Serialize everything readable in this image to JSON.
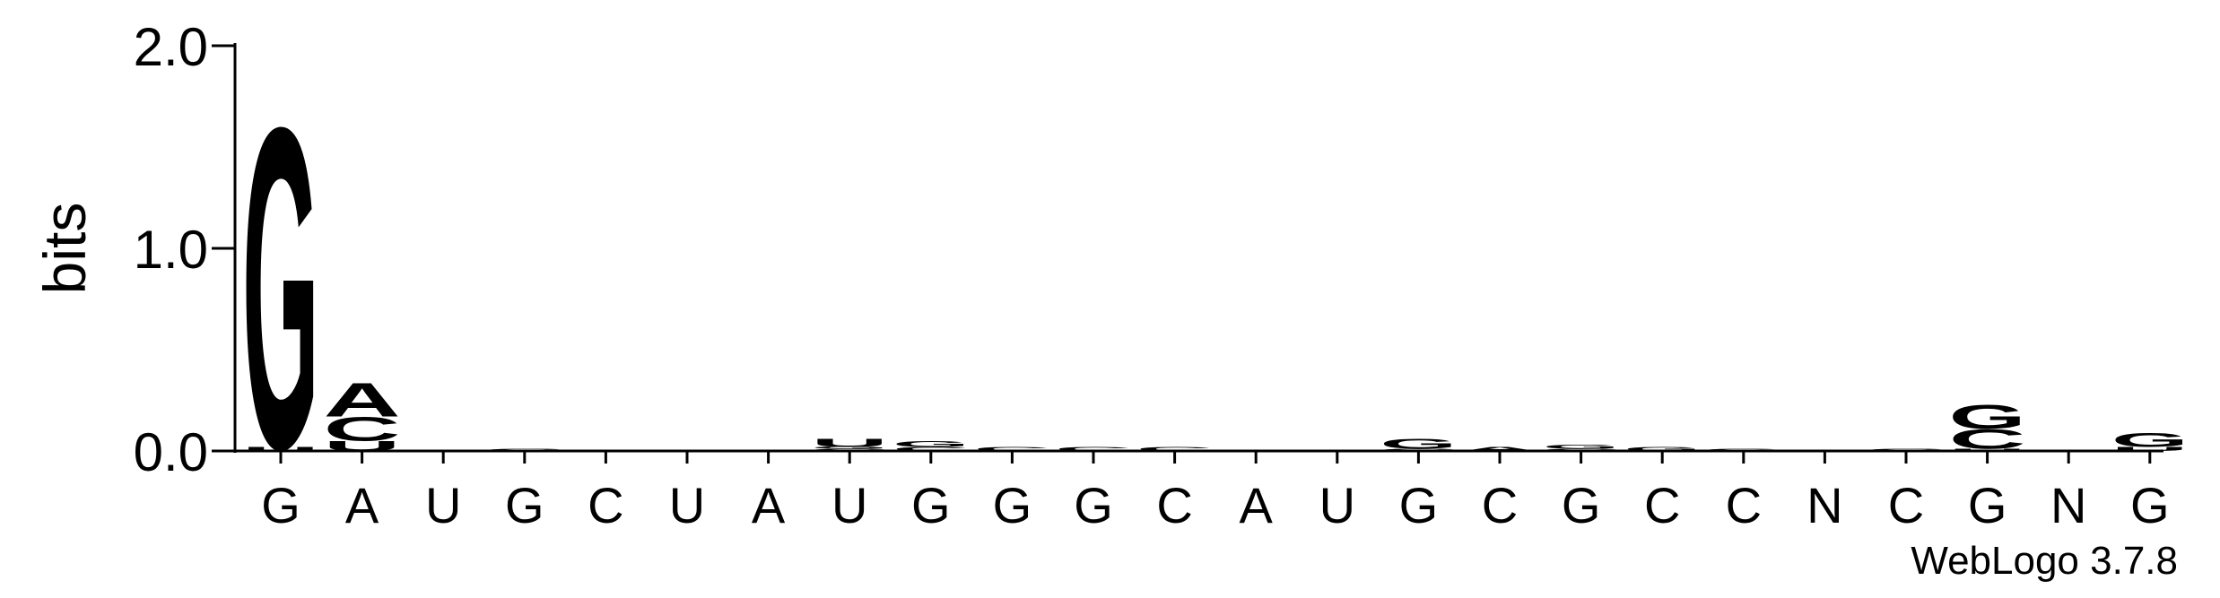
{
  "chart_data": {
    "type": "logo",
    "ylabel": "bits",
    "credit": "WebLogo 3.7.8",
    "categories": [
      "G",
      "A",
      "U",
      "G",
      "C",
      "U",
      "A",
      "U",
      "G",
      "G",
      "G",
      "C",
      "A",
      "U",
      "G",
      "C",
      "G",
      "C",
      "C",
      "N",
      "C",
      "G",
      "N",
      "G"
    ],
    "series": [
      {
        "name": "A",
        "color": "#ff8c00",
        "values": [
          0,
          0.17,
          0,
          0,
          0,
          0,
          0,
          0,
          0,
          0,
          0,
          0,
          0,
          0,
          0,
          0.02,
          0,
          0,
          0,
          0,
          0,
          0,
          0,
          0
        ]
      },
      {
        "name": "C",
        "color": "#0000ff",
        "values": [
          0,
          0.12,
          0,
          0.01,
          0,
          0,
          0,
          0.01,
          0.02,
          0.02,
          0.02,
          0.02,
          0,
          0,
          0.01,
          0,
          0.01,
          0,
          0,
          0,
          0.01,
          0.1,
          0,
          0
        ]
      },
      {
        "name": "G",
        "color": "#0000ff",
        "values": [
          1.62,
          0,
          0,
          0,
          0,
          0,
          0,
          0.01,
          0.03,
          0,
          0,
          0,
          0,
          0,
          0.05,
          0,
          0.02,
          0.02,
          0.01,
          0,
          0,
          0.12,
          0,
          0.07
        ]
      },
      {
        "name": "U",
        "color": "#ff8c00",
        "values": [
          0.02,
          0.05,
          0,
          0,
          0,
          0,
          0,
          0.04,
          0,
          0,
          0,
          0,
          0,
          0,
          0,
          0,
          0,
          0,
          0,
          0,
          0,
          0.01,
          0,
          0.02
        ]
      }
    ],
    "ylim": [
      0,
      2
    ],
    "yticks": [
      {
        "value": 0,
        "label": "0.0"
      },
      {
        "value": 1,
        "label": "1.0"
      },
      {
        "value": 2,
        "label": "2.0"
      }
    ]
  }
}
